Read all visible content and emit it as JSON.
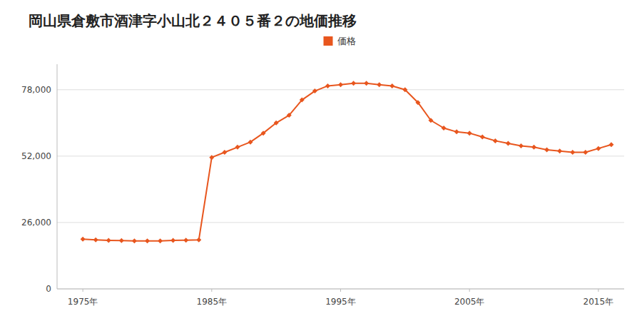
{
  "chart_data": {
    "type": "line",
    "title": "岡山県倉敷市酒津字小山北２４０５番２の地価推移",
    "x": [
      1975,
      1976,
      1977,
      1978,
      1979,
      1980,
      1981,
      1982,
      1983,
      1984,
      1985,
      1986,
      1987,
      1988,
      1989,
      1990,
      1991,
      1992,
      1993,
      1994,
      1995,
      1996,
      1997,
      1998,
      1999,
      2000,
      2001,
      2002,
      2003,
      2004,
      2005,
      2006,
      2007,
      2008,
      2009,
      2010,
      2011,
      2012,
      2013,
      2014,
      2015,
      2016
    ],
    "series": [
      {
        "name": "価格",
        "color": "#e8561e",
        "marker": "diamond",
        "values": [
          19500,
          19200,
          19000,
          18900,
          18800,
          18800,
          18800,
          19000,
          19100,
          19200,
          51500,
          53500,
          55500,
          57500,
          61000,
          65000,
          68000,
          74000,
          77500,
          79500,
          80000,
          80500,
          80500,
          80000,
          79500,
          78000,
          73000,
          66000,
          63000,
          61500,
          61000,
          59500,
          58000,
          57000,
          56000,
          55500,
          54500,
          54000,
          53500,
          53500,
          55000,
          56500
        ]
      }
    ],
    "xlim": [
      1973,
      2017
    ],
    "xticks": [
      {
        "value": 1975,
        "label": "1975年"
      },
      {
        "value": 1985,
        "label": "1985年"
      },
      {
        "value": 1995,
        "label": "1995年"
      },
      {
        "value": 2005,
        "label": "2005年"
      },
      {
        "value": 2015,
        "label": "2015年"
      }
    ],
    "ylim": [
      0,
      88000
    ],
    "yticks": [
      0,
      {
        "value": 26000,
        "label": "26,000"
      },
      {
        "value": 52000,
        "label": "52,000"
      },
      {
        "value": 78000,
        "label": "78,000"
      }
    ],
    "grid": true,
    "legend": "top"
  }
}
